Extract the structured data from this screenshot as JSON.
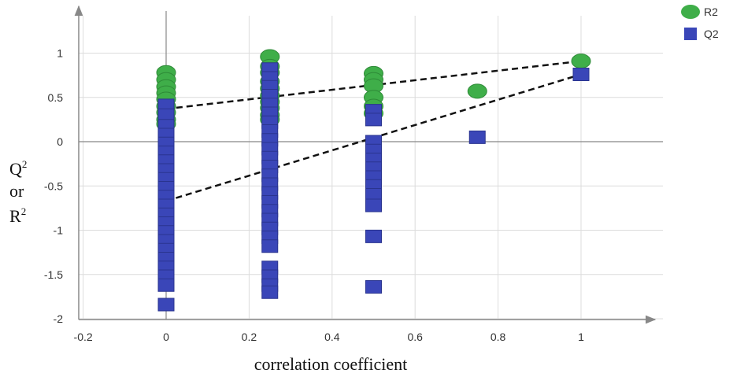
{
  "chart_data": {
    "type": "scatter",
    "title": "",
    "xlabel": "correlation coefficient",
    "ylabel_lines": [
      "Q",
      "or",
      "R"
    ],
    "ylabel_superscripts": [
      "2",
      "",
      "2"
    ],
    "xlim": [
      -0.2,
      1.15
    ],
    "ylim": [
      -2,
      1.4
    ],
    "xticks": [
      "-0.2",
      "0",
      "0.2",
      "0.4",
      "0.6",
      "0.8",
      "1"
    ],
    "xtick_values": [
      -0.2,
      0,
      0.2,
      0.4,
      0.6,
      0.8,
      1
    ],
    "yticks": [
      "1",
      "0.5",
      "0",
      "-0.5",
      "-1",
      "-1.5",
      "-2"
    ],
    "ytick_values": [
      1,
      0.5,
      0,
      -0.5,
      -1,
      -1.5,
      -2
    ],
    "grid": true,
    "legend_position": "top-right",
    "series": [
      {
        "name": "R2",
        "marker": "circle",
        "color": "#3fae49",
        "points": [
          [
            0,
            0.78
          ],
          [
            0,
            0.7
          ],
          [
            0,
            0.62
          ],
          [
            0,
            0.55
          ],
          [
            0,
            0.48
          ],
          [
            0,
            0.4
          ],
          [
            0,
            0.33
          ],
          [
            0,
            0.25
          ],
          [
            0,
            0.2
          ],
          [
            0.25,
            0.96
          ],
          [
            0.25,
            0.85
          ],
          [
            0.25,
            0.78
          ],
          [
            0.25,
            0.68
          ],
          [
            0.25,
            0.6
          ],
          [
            0.25,
            0.52
          ],
          [
            0.25,
            0.45
          ],
          [
            0.25,
            0.38
          ],
          [
            0.25,
            0.3
          ],
          [
            0.25,
            0.25
          ],
          [
            0.5,
            0.77
          ],
          [
            0.5,
            0.7
          ],
          [
            0.5,
            0.63
          ],
          [
            0.5,
            0.5
          ],
          [
            0.5,
            0.4
          ],
          [
            0.5,
            0.32
          ],
          [
            0.75,
            0.57
          ],
          [
            1,
            0.91
          ]
        ]
      },
      {
        "name": "Q2",
        "marker": "square",
        "color": "#3a46b8",
        "points": [
          [
            0,
            0.41
          ],
          [
            0,
            0.3
          ],
          [
            0,
            0.18
          ],
          [
            0,
            0.08
          ],
          [
            0,
            -0.02
          ],
          [
            0,
            -0.12
          ],
          [
            0,
            -0.22
          ],
          [
            0,
            -0.32
          ],
          [
            0,
            -0.42
          ],
          [
            0,
            -0.52
          ],
          [
            0,
            -0.62
          ],
          [
            0,
            -0.72
          ],
          [
            0,
            -0.82
          ],
          [
            0,
            -0.92
          ],
          [
            0,
            -1.02
          ],
          [
            0,
            -1.12
          ],
          [
            0,
            -1.22
          ],
          [
            0,
            -1.32
          ],
          [
            0,
            -1.42
          ],
          [
            0,
            -1.52
          ],
          [
            0,
            -1.62
          ],
          [
            0,
            -1.84
          ],
          [
            0.25,
            0.82
          ],
          [
            0.25,
            0.72
          ],
          [
            0.25,
            0.62
          ],
          [
            0.25,
            0.52
          ],
          [
            0.25,
            0.42
          ],
          [
            0.25,
            0.32
          ],
          [
            0.25,
            0.22
          ],
          [
            0.25,
            0.12
          ],
          [
            0.25,
            0.02
          ],
          [
            0.25,
            -0.08
          ],
          [
            0.25,
            -0.18
          ],
          [
            0.25,
            -0.28
          ],
          [
            0.25,
            -0.38
          ],
          [
            0.25,
            -0.48
          ],
          [
            0.25,
            -0.58
          ],
          [
            0.25,
            -0.68
          ],
          [
            0.25,
            -0.78
          ],
          [
            0.25,
            -0.88
          ],
          [
            0.25,
            -0.98
          ],
          [
            0.25,
            -1.08
          ],
          [
            0.25,
            -1.18
          ],
          [
            0.25,
            -1.42
          ],
          [
            0.25,
            -1.52
          ],
          [
            0.25,
            -1.62
          ],
          [
            0.25,
            -1.7
          ],
          [
            0.5,
            0.35
          ],
          [
            0.5,
            0.25
          ],
          [
            0.5,
            0.0
          ],
          [
            0.5,
            -0.1
          ],
          [
            0.5,
            -0.2
          ],
          [
            0.5,
            -0.3
          ],
          [
            0.5,
            -0.4
          ],
          [
            0.5,
            -0.5
          ],
          [
            0.5,
            -0.6
          ],
          [
            0.5,
            -0.72
          ],
          [
            0.5,
            -1.07
          ],
          [
            0.5,
            -1.64
          ],
          [
            0.75,
            0.05
          ],
          [
            1,
            0.76
          ]
        ]
      }
    ],
    "trend_lines": [
      {
        "series": "R2",
        "from": [
          0,
          0.37
        ],
        "to": [
          1,
          0.91
        ]
      },
      {
        "series": "Q2",
        "from": [
          0,
          -0.67
        ],
        "to": [
          1,
          0.76
        ]
      }
    ]
  }
}
